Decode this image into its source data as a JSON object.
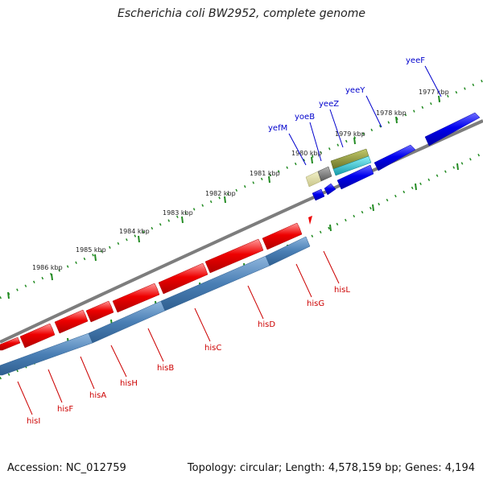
{
  "title": "Escherichia coli BW2952, complete genome",
  "footer": {
    "accession": "Accession: NC_012759",
    "topology": "Topology: circular; Length: 4,578,159 bp; Genes: 4,194"
  },
  "colors": {
    "backbone": "#808080",
    "ticks": "#228b22",
    "forward_gene": "#ee0000",
    "forward_label": "#cc0000",
    "cds_band": "#4a7fb5",
    "reverse_gene": "#0000ee",
    "reverse_label": "#0000cc",
    "rrna_olive": "#8f9a3e",
    "rrna_cyan": "#1cc6d6",
    "pseudo_tan": "#dedca0",
    "pseudo_gray": "#8a8a8a"
  },
  "kbp_labels": [
    "1977 kbp",
    "1978 kbp",
    "1979 kbp",
    "1980 kbp",
    "1981 kbp",
    "1982 kbp",
    "1983 kbp",
    "1984 kbp",
    "1985 kbp",
    "1986 kbp"
  ],
  "forward_genes": [
    "hisI",
    "hisF",
    "hisA",
    "hisH",
    "hisB",
    "hisC",
    "hisD",
    "hisG",
    "hisL"
  ],
  "reverse_genes": [
    "yefM",
    "yoeB",
    "yeeZ",
    "yeeY",
    "yeeF"
  ]
}
